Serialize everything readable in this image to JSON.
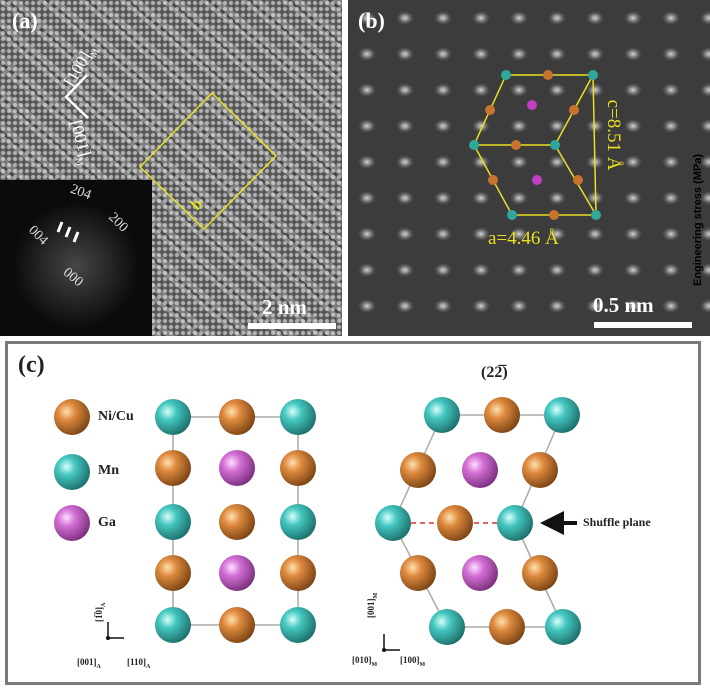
{
  "panel_a": {
    "label": "(a)",
    "direction_1": "[100]",
    "direction_1_sub": "M",
    "direction_2": "[001]",
    "direction_2_sub": "M",
    "box_label": "b",
    "fft_labels": [
      "204",
      "200",
      "004",
      "000"
    ],
    "scale_bar": "2 nm"
  },
  "panel_b": {
    "label": "(b)",
    "c_label": "c=8.51 Å",
    "a_label": "a=4.46 Å",
    "scale_bar": "0.5 nm"
  },
  "side_label": "Engineering stress (MPa)",
  "panel_c": {
    "label": "(c)",
    "legend": [
      {
        "name": "Ni/Cu",
        "color": "#d9853a"
      },
      {
        "name": "Mn",
        "color": "#3fc4bd"
      },
      {
        "name": "Ga",
        "color": "#d46fd6"
      }
    ],
    "left_axes": {
      "up": "[1̅0]",
      "up_sub": "A",
      "left": "[001]",
      "left_sub": "A",
      "right": "[110]",
      "right_sub": "A"
    },
    "right_title": "(22̅)",
    "shuffle_label": "Shuffle plane",
    "right_axes": {
      "up": "[001]",
      "up_sub": "M",
      "left": "[010]",
      "left_sub": "M",
      "right": "[100]",
      "right_sub": "M"
    }
  },
  "colors": {
    "highlight": "#e8e020",
    "shuffle_line": "#e03030"
  }
}
